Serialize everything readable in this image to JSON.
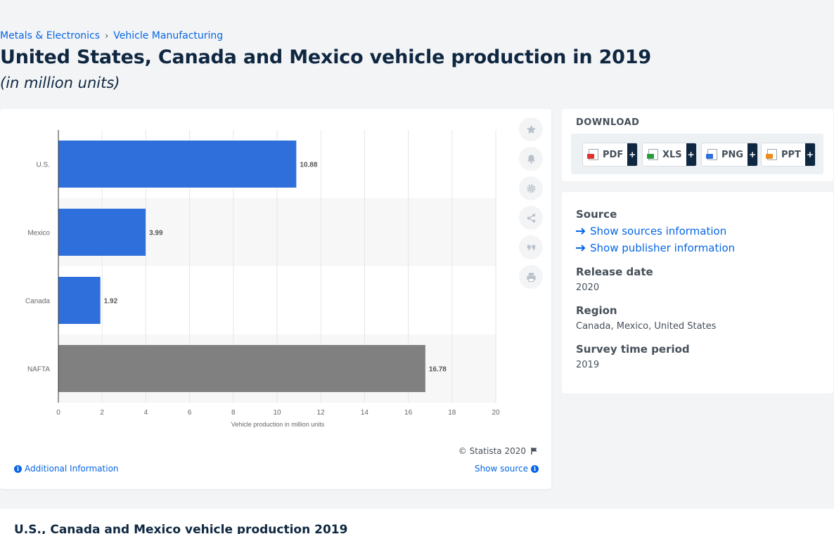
{
  "breadcrumb": {
    "items": [
      "Metals & Electronics",
      "Vehicle Manufacturing"
    ],
    "separator": "›"
  },
  "title": "United States, Canada and Mexico vehicle production in 2019",
  "subtitle": "(in million units)",
  "chart_data": {
    "type": "bar",
    "orientation": "horizontal",
    "categories": [
      "U.S.",
      "Mexico",
      "Canada",
      "NAFTA"
    ],
    "values": [
      10.88,
      3.99,
      1.92,
      16.78
    ],
    "value_labels": [
      "10.88",
      "3.99",
      "1.92",
      "16.78"
    ],
    "bar_colors": [
      "#2f6fdc",
      "#2f6fdc",
      "#2f6fdc",
      "#808080"
    ],
    "xlabel": "Vehicle production in million units",
    "xlim": [
      0,
      20
    ],
    "xticks": [
      0,
      2,
      4,
      6,
      8,
      10,
      12,
      14,
      16,
      18,
      20
    ],
    "grid": true
  },
  "chart_footer": {
    "copyright": "© Statista 2020",
    "additional_info": "Additional Information",
    "show_source": "Show source"
  },
  "tools": [
    "star-icon",
    "bell-icon",
    "gear-icon",
    "share-icon",
    "quote-icon",
    "print-icon"
  ],
  "download": {
    "title": "DOWNLOAD",
    "buttons": [
      {
        "label": "PDF",
        "color": "#e0312b"
      },
      {
        "label": "XLS",
        "color": "#2a9d3b"
      },
      {
        "label": "PNG",
        "color": "#2f6fdc"
      },
      {
        "label": "PPT",
        "color": "#f08b1e"
      }
    ],
    "plus": "+"
  },
  "info": {
    "source_label": "Source",
    "show_sources": "Show sources information",
    "show_publisher": "Show publisher information",
    "release_label": "Release date",
    "release_value": "2020",
    "region_label": "Region",
    "region_value": "Canada, Mexico, United States",
    "period_label": "Survey time period",
    "period_value": "2019"
  },
  "bottom": {
    "title": "U.S., Canada and Mexico vehicle production 2019"
  },
  "colors": {
    "link": "#0666e5",
    "title": "#0f2741",
    "bar_primary": "#2f6fdc",
    "bar_total": "#808080"
  }
}
